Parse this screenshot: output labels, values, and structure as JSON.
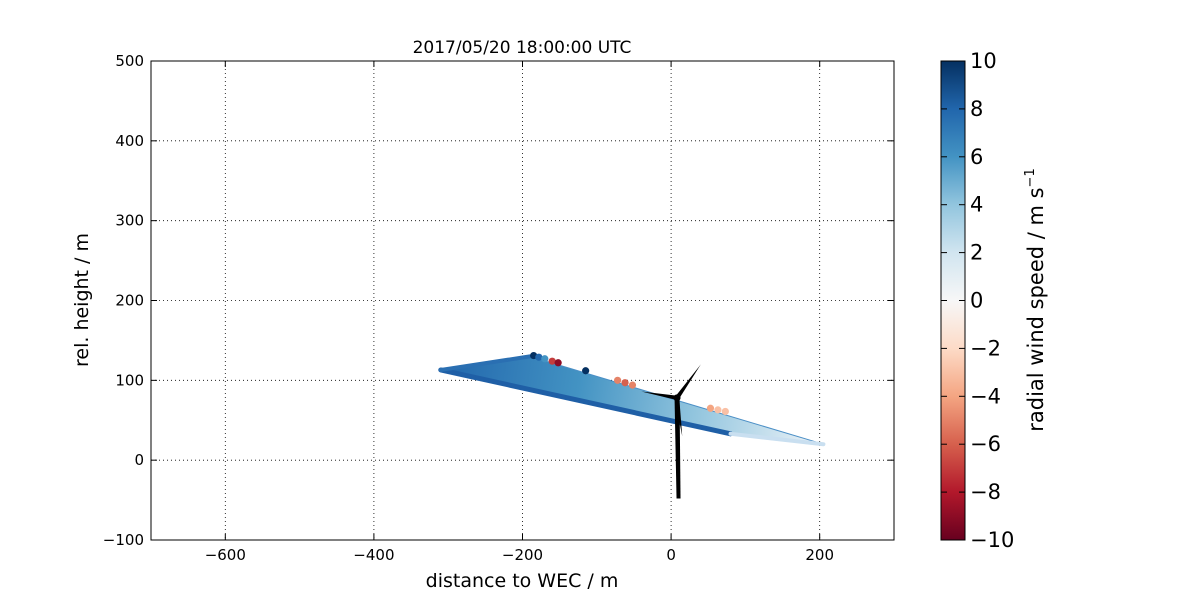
{
  "chart_data": {
    "type": "scatter",
    "title": "2017/05/20 18:00:00 UTC",
    "xlabel": "distance to WEC / m",
    "ylabel": "rel. height / m",
    "xlim": [
      -700,
      300
    ],
    "ylim": [
      -100,
      500
    ],
    "xticks": [
      -600,
      -400,
      -200,
      0,
      200
    ],
    "yticks": [
      -100,
      0,
      100,
      200,
      300,
      400,
      500
    ],
    "grid": true,
    "colorbar": {
      "label": "radial wind speed / m s",
      "label_superscript": "−1",
      "range": [
        -10,
        10
      ],
      "ticks": [
        10,
        8,
        6,
        4,
        2,
        0,
        -2,
        -4,
        -6,
        -8,
        -10
      ],
      "tick_labels": [
        "10",
        "8",
        "6",
        "4",
        "2",
        "0",
        "−2",
        "−4",
        "−6",
        "−8",
        "−10"
      ],
      "colormap": "RdBu",
      "colors": [
        "#67001f",
        "#b2182b",
        "#d6604d",
        "#f4a582",
        "#fddbc7",
        "#f7f7f7",
        "#d1e5f0",
        "#92c5de",
        "#4393c3",
        "#2166ac",
        "#053061"
      ]
    },
    "scan_region": {
      "description_points": [
        {
          "x": -310,
          "y": 113
        },
        {
          "x": -190,
          "y": 130
        },
        {
          "x": 205,
          "y": 20
        },
        {
          "x": 80,
          "y": 33
        }
      ]
    },
    "series": [
      {
        "points": [
          {
            "x": -185,
            "y": 131,
            "v": 10
          },
          {
            "x": -178,
            "y": 129,
            "v": 8
          },
          {
            "x": -170,
            "y": 127,
            "v": 6
          },
          {
            "x": -160,
            "y": 124,
            "v": -7
          },
          {
            "x": -152,
            "y": 122,
            "v": -9
          },
          {
            "x": -115,
            "y": 112,
            "v": 10
          },
          {
            "x": -72,
            "y": 100,
            "v": -5
          },
          {
            "x": -62,
            "y": 97,
            "v": -6
          },
          {
            "x": -52,
            "y": 94,
            "v": -5
          },
          {
            "x": 53,
            "y": 65,
            "v": -4
          },
          {
            "x": 63,
            "y": 63,
            "v": -3
          },
          {
            "x": 73,
            "y": 61,
            "v": -3
          }
        ]
      }
    ],
    "turbine": {
      "hub_x": 8,
      "hub_y": 78,
      "tower_base": {
        "x": 10,
        "y": -48
      },
      "blade_tips": [
        {
          "x": 40,
          "y": 120
        },
        {
          "x": -40,
          "y": 86
        },
        {
          "x": 15,
          "y": 30
        }
      ]
    }
  }
}
